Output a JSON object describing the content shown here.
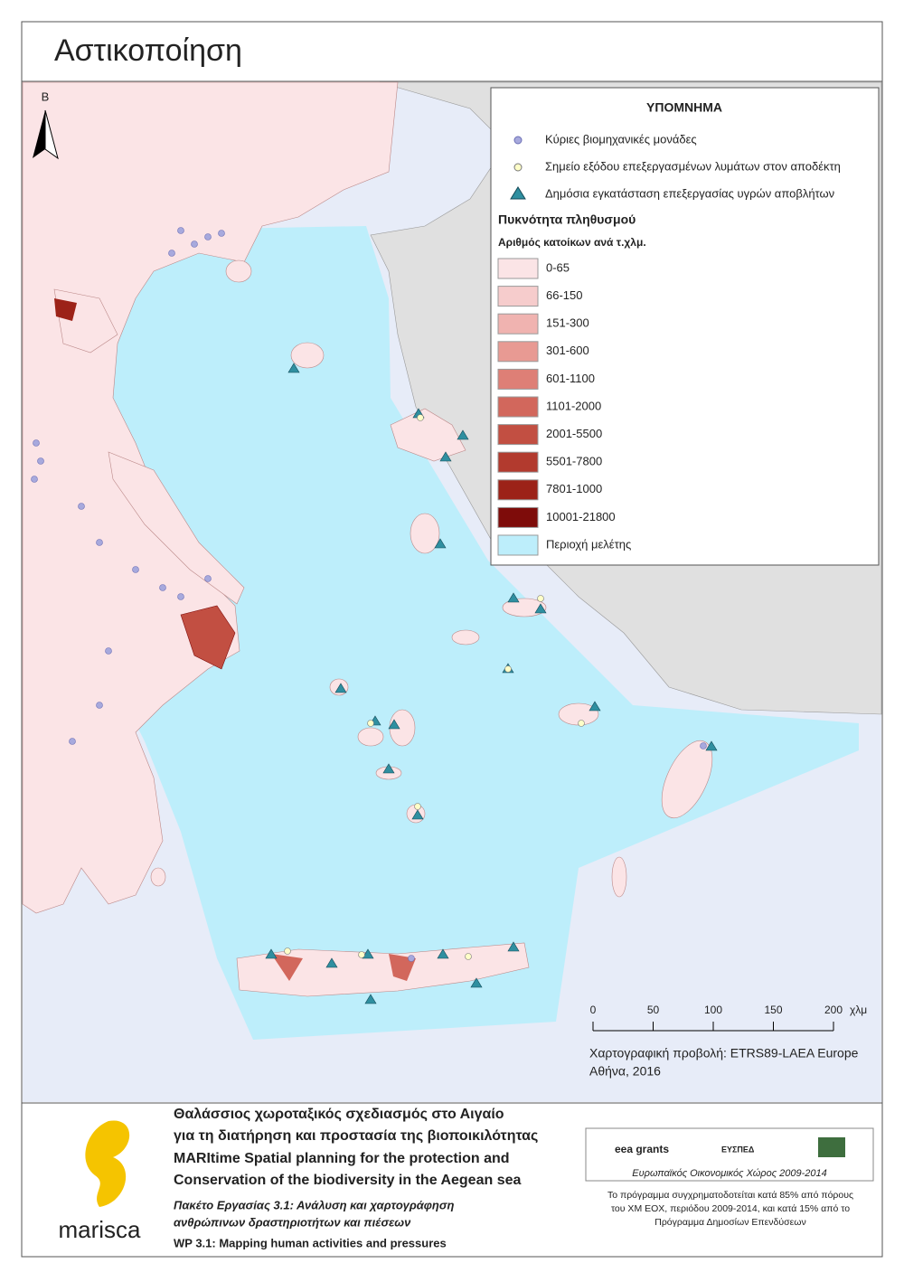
{
  "header": {
    "title": "Αστικοποίηση"
  },
  "north_arrow": "Β",
  "legend": {
    "title": "ΥΠΟΜΝΗΜΑ",
    "symbols": [
      "Κύριες βιομηχανικές μονάδες",
      "Σημείο εξόδου επεξεργασμένων λυμάτων στον αποδέκτη",
      "Δημόσια εγκατάσταση επεξεργασίας υγρών αποβλήτων"
    ],
    "density_title": "Πυκνότητα πληθυσμού",
    "density_subtitle": "Αριθμός κατοίκων ανά τ.χλμ.",
    "classes": [
      {
        "label": "0-65",
        "color": "#fbe4e6"
      },
      {
        "label": "66-150",
        "color": "#f6cccc"
      },
      {
        "label": "151-300",
        "color": "#f0b3b0"
      },
      {
        "label": "301-600",
        "color": "#e89a93"
      },
      {
        "label": "601-1100",
        "color": "#de7f76"
      },
      {
        "label": "1101-2000",
        "color": "#d2675c"
      },
      {
        "label": "2001-5500",
        "color": "#c24f42"
      },
      {
        "label": "5501-7800",
        "color": "#b23a2e"
      },
      {
        "label": "7801-1000",
        "color": "#9c2218"
      },
      {
        "label": "10001-21800",
        "color": "#7e0c0a"
      }
    ],
    "study_area": {
      "label": "Περιοχή μελέτης",
      "color": "#bdeefb"
    }
  },
  "scale_bar": {
    "ticks": [
      0,
      50,
      100,
      150,
      200
    ],
    "unit": "χλμ"
  },
  "projection": "Χαρτογραφική προβολή: ETRS89-LAEA Europe",
  "place_date": "Αθήνα, 2016",
  "footer": {
    "greek_title": [
      "Θαλάσσιος χωροταξικός σχεδιασμός στο Αιγαίο",
      "για τη διατήρηση και προστασία της βιοποικιλότητας"
    ],
    "english_title": [
      "MARItime Spatial planning for the protection and",
      "Conservation of the biodiversity in the Aegean sea"
    ],
    "wp_greek": [
      "Πακέτο Εργασίας 3.1: Ανάλυση και χαρτογράφηση",
      "ανθρώπινων δραστηριοτήτων και πιέσεων"
    ],
    "wp_english": "WP 3.1: Mapping human activities and pressures",
    "logo": "marisca",
    "sponsors": [
      "eea grants",
      "ΕΥΣΠΕΔ",
      "Ευρωπαϊκός Οικονομικός Χώρος 2009-2014"
    ],
    "funding": [
      "Το πρόγραμμα συγχρηματοδοτείται κατά 85% από πόρους",
      "του ΧΜ ΕΟΧ, περιόδου 2009-2014, και κατά 15% από το",
      "Πρόγραμμα Δημοσίων Επενδύσεων"
    ]
  }
}
